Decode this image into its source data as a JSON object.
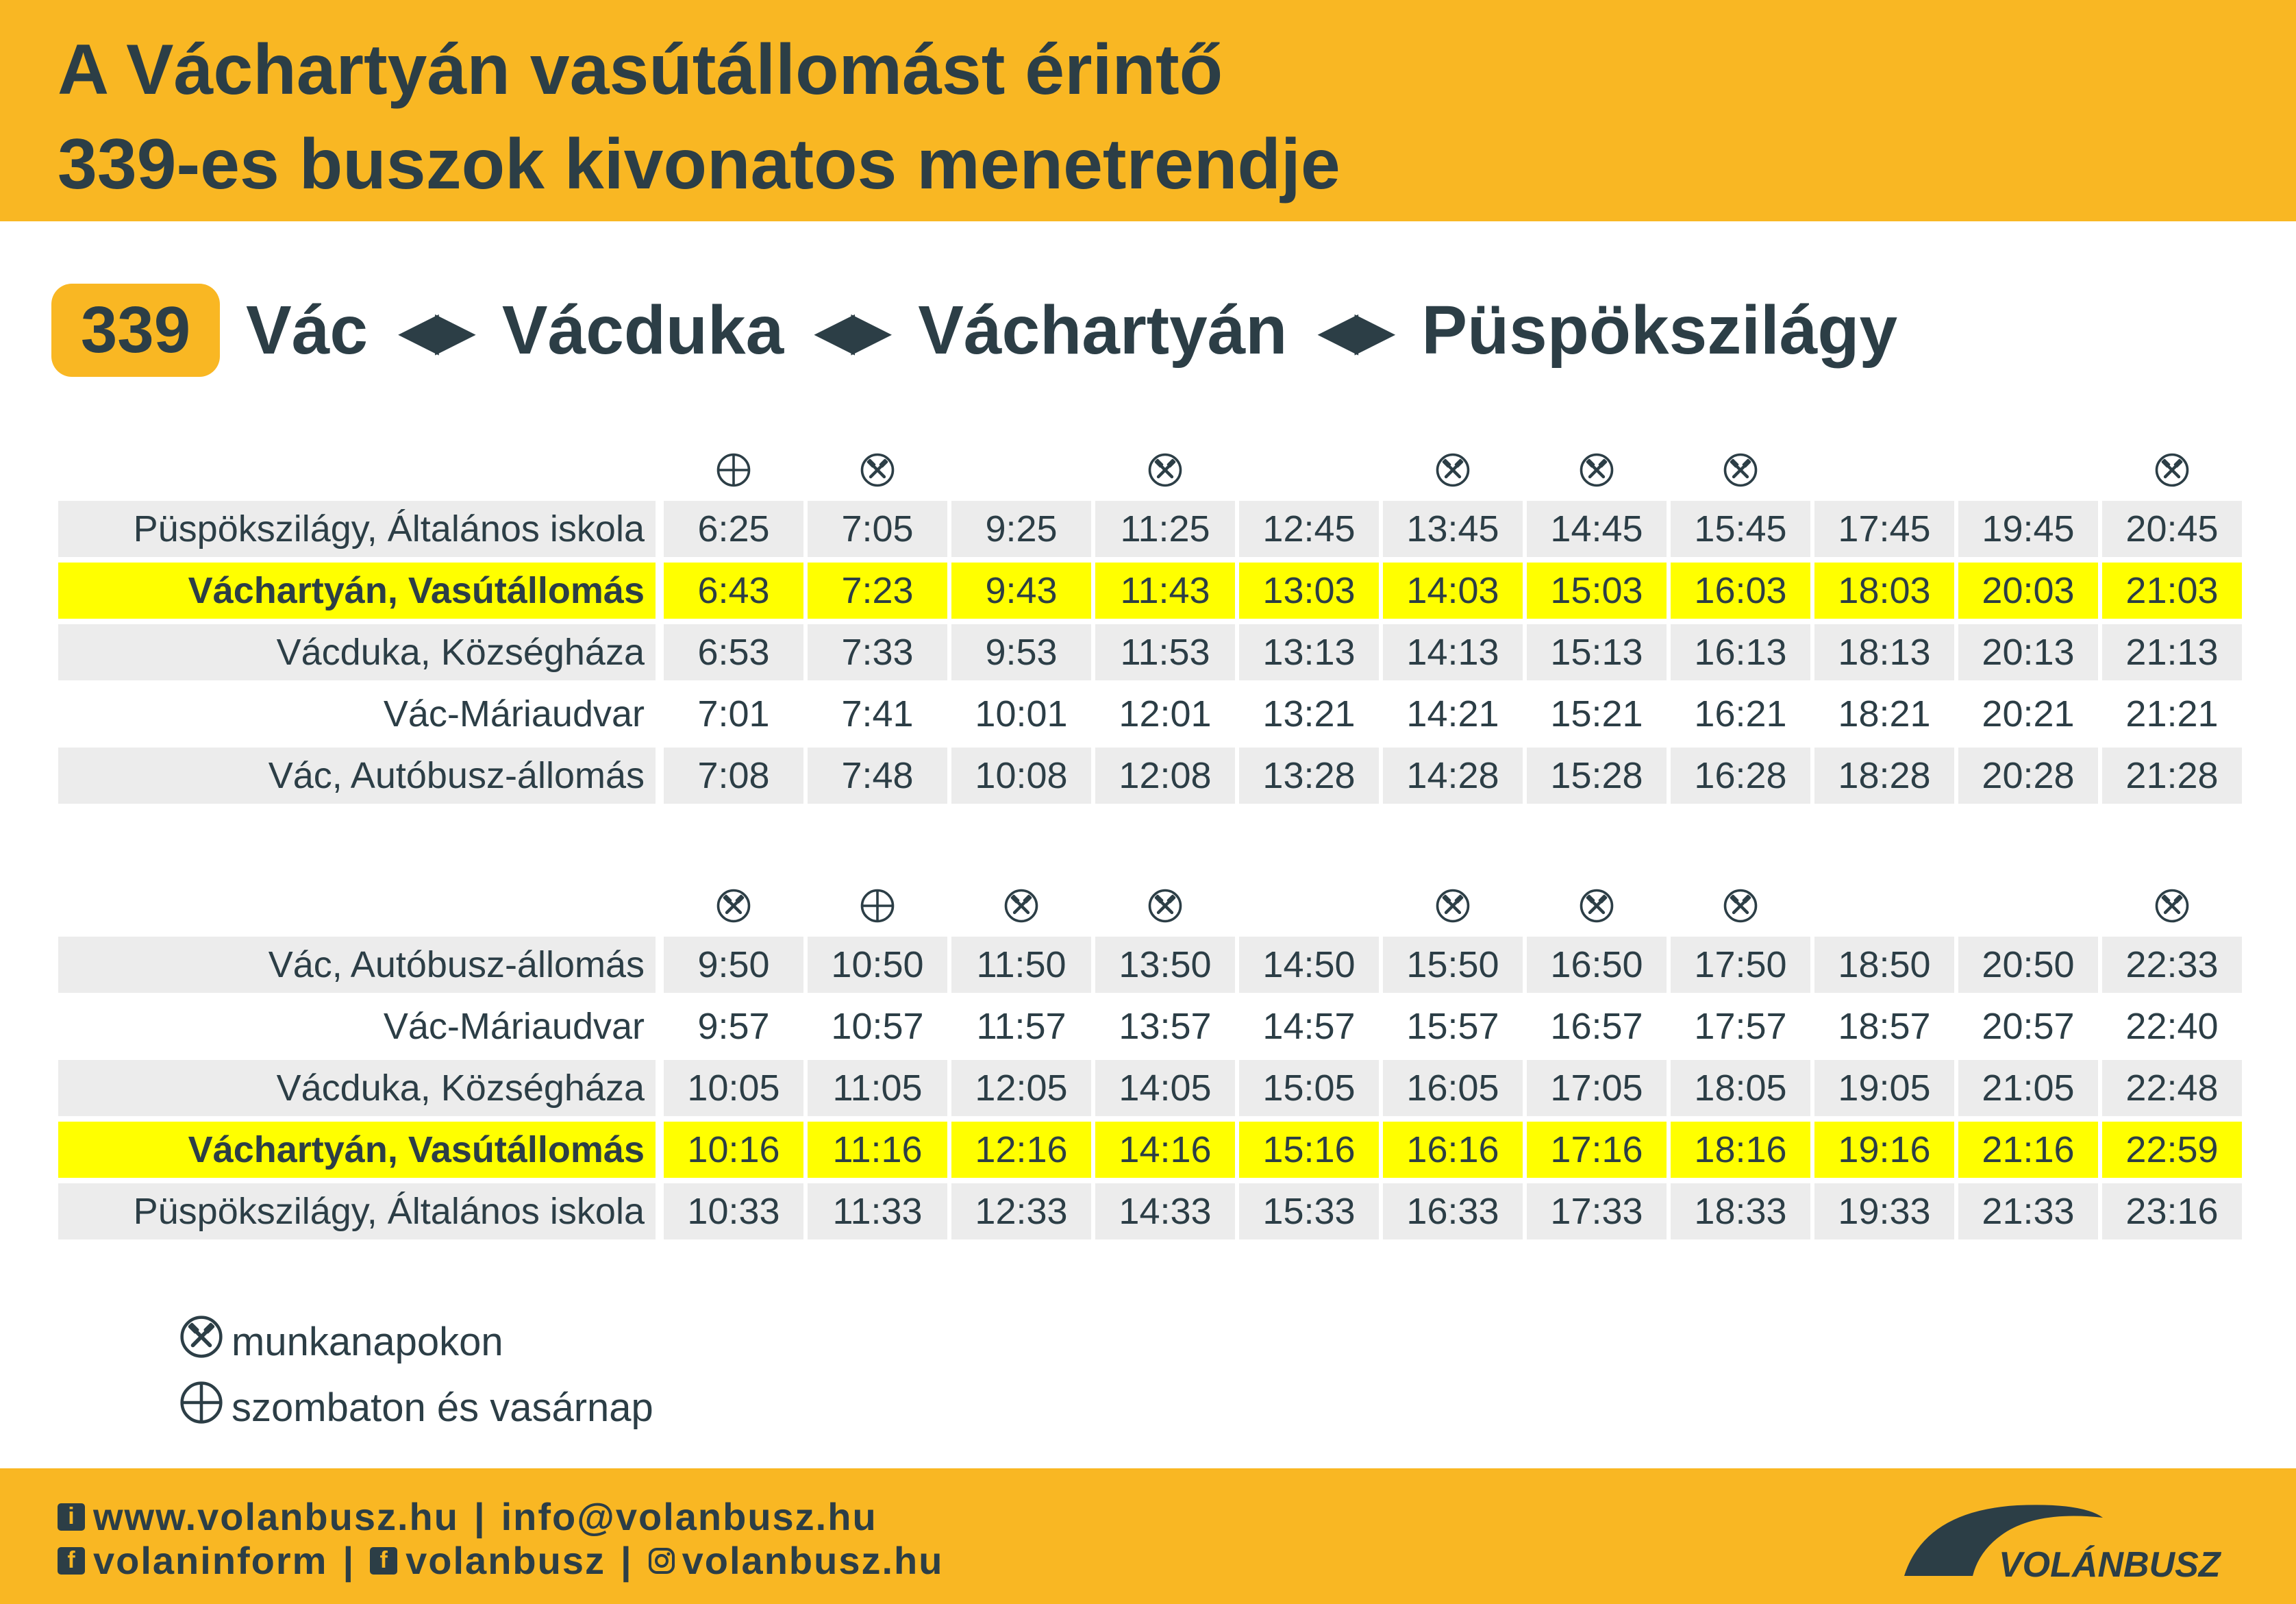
{
  "header": {
    "title_line1": "A Váchartyán vasútállomást érintő",
    "title_line2": "339-es buszok kivonatos menetrendje"
  },
  "route": {
    "number": "339",
    "stops": [
      "Vác",
      "Vácduka",
      "Váchartyán",
      "Püspökszilágy"
    ],
    "arrow": "◀▶"
  },
  "table1": {
    "icons": [
      "weekend",
      "workday",
      "",
      "workday",
      "",
      "workday",
      "workday",
      "workday",
      "",
      "",
      "workday"
    ],
    "rows": [
      {
        "name": "Püspökszilágy, Általános iskola",
        "style": "shaded",
        "times": [
          "6:25",
          "7:05",
          "9:25",
          "11:25",
          "12:45",
          "13:45",
          "14:45",
          "15:45",
          "17:45",
          "19:45",
          "20:45"
        ]
      },
      {
        "name": "Váchartyán, Vasútállomás",
        "style": "highlight",
        "times": [
          "6:43",
          "7:23",
          "9:43",
          "11:43",
          "13:03",
          "14:03",
          "15:03",
          "16:03",
          "18:03",
          "20:03",
          "21:03"
        ]
      },
      {
        "name": "Vácduka, Községháza",
        "style": "shaded",
        "times": [
          "6:53",
          "7:33",
          "9:53",
          "11:53",
          "13:13",
          "14:13",
          "15:13",
          "16:13",
          "18:13",
          "20:13",
          "21:13"
        ]
      },
      {
        "name": "Vác-Máriaudvar",
        "style": "plain",
        "times": [
          "7:01",
          "7:41",
          "10:01",
          "12:01",
          "13:21",
          "14:21",
          "15:21",
          "16:21",
          "18:21",
          "20:21",
          "21:21"
        ]
      },
      {
        "name": "Vác, Autóbusz-állomás",
        "style": "shaded",
        "times": [
          "7:08",
          "7:48",
          "10:08",
          "12:08",
          "13:28",
          "14:28",
          "15:28",
          "16:28",
          "18:28",
          "20:28",
          "21:28"
        ]
      }
    ]
  },
  "table2": {
    "icons": [
      "workday",
      "weekend",
      "workday",
      "workday",
      "",
      "workday",
      "workday",
      "workday",
      "",
      "",
      "workday"
    ],
    "rows": [
      {
        "name": "Vác, Autóbusz-állomás",
        "style": "shaded",
        "times": [
          "9:50",
          "10:50",
          "11:50",
          "13:50",
          "14:50",
          "15:50",
          "16:50",
          "17:50",
          "18:50",
          "20:50",
          "22:33"
        ]
      },
      {
        "name": "Vác-Máriaudvar",
        "style": "plain",
        "times": [
          "9:57",
          "10:57",
          "11:57",
          "13:57",
          "14:57",
          "15:57",
          "16:57",
          "17:57",
          "18:57",
          "20:57",
          "22:40"
        ]
      },
      {
        "name": "Vácduka, Községháza",
        "style": "shaded",
        "times": [
          "10:05",
          "11:05",
          "12:05",
          "14:05",
          "15:05",
          "16:05",
          "17:05",
          "18:05",
          "19:05",
          "21:05",
          "22:48"
        ]
      },
      {
        "name": "Váchartyán, Vasútállomás",
        "style": "highlight",
        "times": [
          "10:16",
          "11:16",
          "12:16",
          "14:16",
          "15:16",
          "16:16",
          "17:16",
          "18:16",
          "19:16",
          "21:16",
          "22:59"
        ]
      },
      {
        "name": "Püspökszilágy, Általános iskola",
        "style": "shaded",
        "times": [
          "10:33",
          "11:33",
          "12:33",
          "14:33",
          "15:33",
          "16:33",
          "17:33",
          "18:33",
          "19:33",
          "21:33",
          "23:16"
        ]
      }
    ]
  },
  "legend": {
    "workday_icon": "hammers-icon",
    "workday_label": "munkanapokon",
    "weekend_icon": "crosshair-circle-icon",
    "weekend_label": "szombaton és vasárnap"
  },
  "footer": {
    "website": "www.volanbusz.hu",
    "email": "info@volanbusz.hu",
    "facebook1": "volaninform",
    "facebook2": "volanbusz",
    "instagram": "volanbusz.hu",
    "logo_text": "VOLÁNBUSZ",
    "divider": "|"
  },
  "colors": {
    "brand_yellow": "#f9b723",
    "highlight_yellow": "#ffff00",
    "text_dark": "#2c3e46",
    "row_shade": "#ececec"
  }
}
